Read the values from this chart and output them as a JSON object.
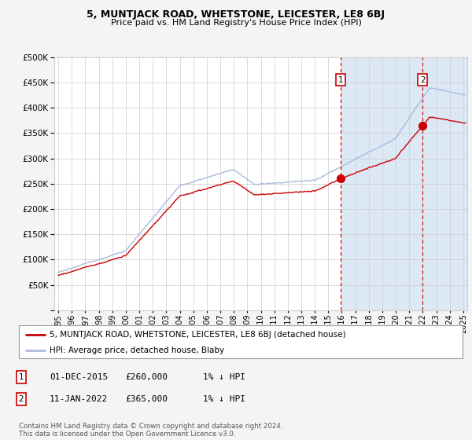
{
  "title": "5, MUNTJACK ROAD, WHETSTONE, LEICESTER, LE8 6BJ",
  "subtitle": "Price paid vs. HM Land Registry's House Price Index (HPI)",
  "legend_line1": "5, MUNTJACK ROAD, WHETSTONE, LEICESTER, LE8 6BJ (detached house)",
  "legend_line2": "HPI: Average price, detached house, Blaby",
  "annotation1_label": "1",
  "annotation1_date": "01-DEC-2015",
  "annotation1_price": "£260,000",
  "annotation1_hpi": "1% ↓ HPI",
  "annotation2_label": "2",
  "annotation2_date": "11-JAN-2022",
  "annotation2_price": "£365,000",
  "annotation2_hpi": "1% ↓ HPI",
  "footer": "Contains HM Land Registry data © Crown copyright and database right 2024.\nThis data is licensed under the Open Government Licence v3.0.",
  "property_color": "#cc0000",
  "hpi_color": "#aabbdd",
  "figure_bg": "#f4f4f4",
  "plot_bg": "#ffffff",
  "shaded_color": "#dde8f5",
  "grid_color": "#cccccc",
  "ylim": [
    0,
    500000
  ],
  "yticks": [
    0,
    50000,
    100000,
    150000,
    200000,
    250000,
    300000,
    350000,
    400000,
    450000,
    500000
  ],
  "sale1_year": 2015.917,
  "sale1_val": 260000,
  "sale2_year": 2022.0,
  "sale2_val": 365000,
  "shade_start": 2016.0,
  "xmin": 1994.7,
  "xmax": 2025.3
}
